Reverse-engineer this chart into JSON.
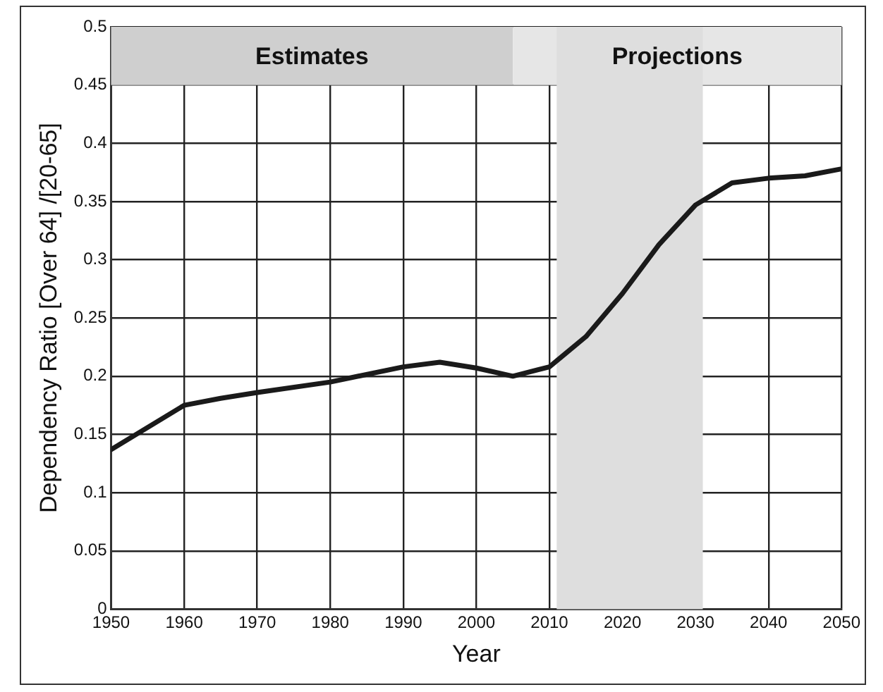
{
  "chart_data": {
    "type": "line",
    "xlabel": "Year",
    "ylabel": "Dependency Ratio [Over 64] /[20-65]",
    "x": [
      1950,
      1960,
      1965,
      1970,
      1980,
      1990,
      1995,
      2000,
      2005,
      2010,
      2015,
      2020,
      2025,
      2030,
      2035,
      2040,
      2045,
      2050
    ],
    "series": [
      {
        "color": "#1a1a1a",
        "values": [
          0.137,
          0.175,
          0.181,
          0.186,
          0.195,
          0.208,
          0.212,
          0.207,
          0.2,
          0.208,
          0.234,
          0.271,
          0.313,
          0.347,
          0.366,
          0.37,
          0.372,
          0.378
        ]
      }
    ],
    "xlim": [
      1950,
      2050
    ],
    "xticks": [
      1950,
      1960,
      1970,
      1980,
      1990,
      2000,
      2010,
      2020,
      2030,
      2040,
      2050
    ],
    "ylim": [
      0,
      0.5
    ],
    "yticks": [
      0,
      0.05,
      0.1,
      0.15,
      0.2,
      0.25,
      0.3,
      0.35,
      0.4,
      0.45,
      0.5
    ],
    "bands": [
      {
        "axis": "x",
        "from": 1950,
        "to": 2005,
        "label": "Estimates",
        "color": "#cfcfcf"
      },
      {
        "axis": "x",
        "from": 2005,
        "to": 2050,
        "label": "Projections",
        "color": "#e6e6e6"
      },
      {
        "axis": "x",
        "from": 2011,
        "to": 2031,
        "color": "#dedede"
      }
    ],
    "grid": true,
    "legend": false,
    "marker": "none",
    "line_style": "solid"
  }
}
